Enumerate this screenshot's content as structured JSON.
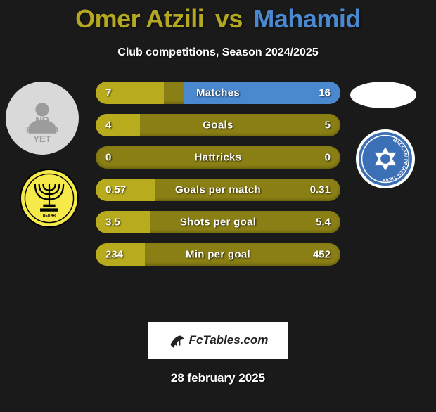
{
  "title": {
    "player1": "Omer Atzili",
    "vs": "vs",
    "player2": "Mahamid",
    "p1_color": "#b4a820",
    "p2_color": "#4a88d0"
  },
  "subtitle": "Club competitions, Season 2024/2025",
  "row_base_color": "#8a7f14",
  "p1_fill_color": "#b8ac1e",
  "p2_fill_color": "#4a88d0",
  "rows": [
    {
      "label": "Matches",
      "left": "7",
      "right": "16",
      "left_pct": 28,
      "right_pct": 64
    },
    {
      "label": "Goals",
      "left": "4",
      "right": "5",
      "left_pct": 18,
      "right_pct": 0
    },
    {
      "label": "Hattricks",
      "left": "0",
      "right": "0",
      "left_pct": 0,
      "right_pct": 0
    },
    {
      "label": "Goals per match",
      "left": "0.57",
      "right": "0.31",
      "left_pct": 24,
      "right_pct": 0
    },
    {
      "label": "Shots per goal",
      "left": "3.5",
      "right": "5.4",
      "left_pct": 22,
      "right_pct": 0
    },
    {
      "label": "Min per goal",
      "left": "234",
      "right": "452",
      "left_pct": 20,
      "right_pct": 0
    }
  ],
  "avatars": {
    "no_photo_text": "NO\nPHOTO\nYET",
    "club_left_bg": "#f6e94a",
    "club_right_bg": "#3b6fb6"
  },
  "brand": {
    "text": "FcTables.com"
  },
  "date": "28 february 2025"
}
